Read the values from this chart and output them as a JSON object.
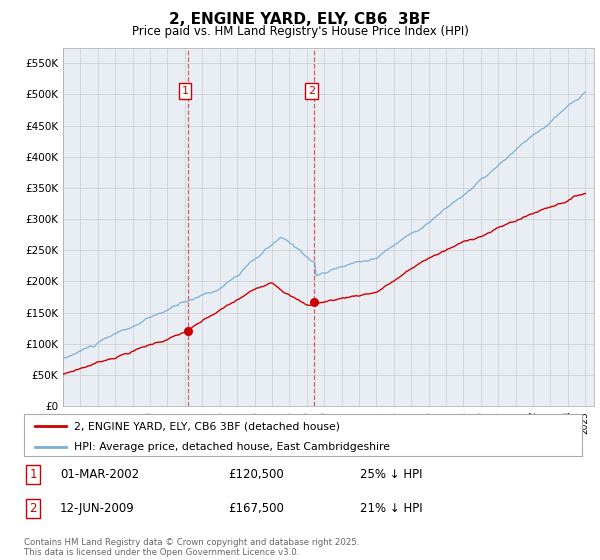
{
  "title": "2, ENGINE YARD, ELY, CB6  3BF",
  "subtitle": "Price paid vs. HM Land Registry's House Price Index (HPI)",
  "xlim_start": 1995.0,
  "xlim_end": 2025.5,
  "ylim": [
    0,
    575000
  ],
  "yticks": [
    0,
    50000,
    100000,
    150000,
    200000,
    250000,
    300000,
    350000,
    400000,
    450000,
    500000,
    550000
  ],
  "ytick_labels": [
    "£0",
    "£50K",
    "£100K",
    "£150K",
    "£200K",
    "£250K",
    "£300K",
    "£350K",
    "£400K",
    "£450K",
    "£500K",
    "£550K"
  ],
  "sale1_date": 2002.17,
  "sale1_price": 120500,
  "sale2_date": 2009.44,
  "sale2_price": 167500,
  "red_color": "#cc0000",
  "blue_color": "#7bafd4",
  "vline_color": "#cc0000",
  "legend_red_label": "2, ENGINE YARD, ELY, CB6 3BF (detached house)",
  "legend_blue_label": "HPI: Average price, detached house, East Cambridgeshire",
  "table_row1": [
    "1",
    "01-MAR-2002",
    "£120,500",
    "25% ↓ HPI"
  ],
  "table_row2": [
    "2",
    "12-JUN-2009",
    "£167,500",
    "21% ↓ HPI"
  ],
  "footnote": "Contains HM Land Registry data © Crown copyright and database right 2025.\nThis data is licensed under the Open Government Licence v3.0.",
  "plot_bg": "#e8eef4"
}
